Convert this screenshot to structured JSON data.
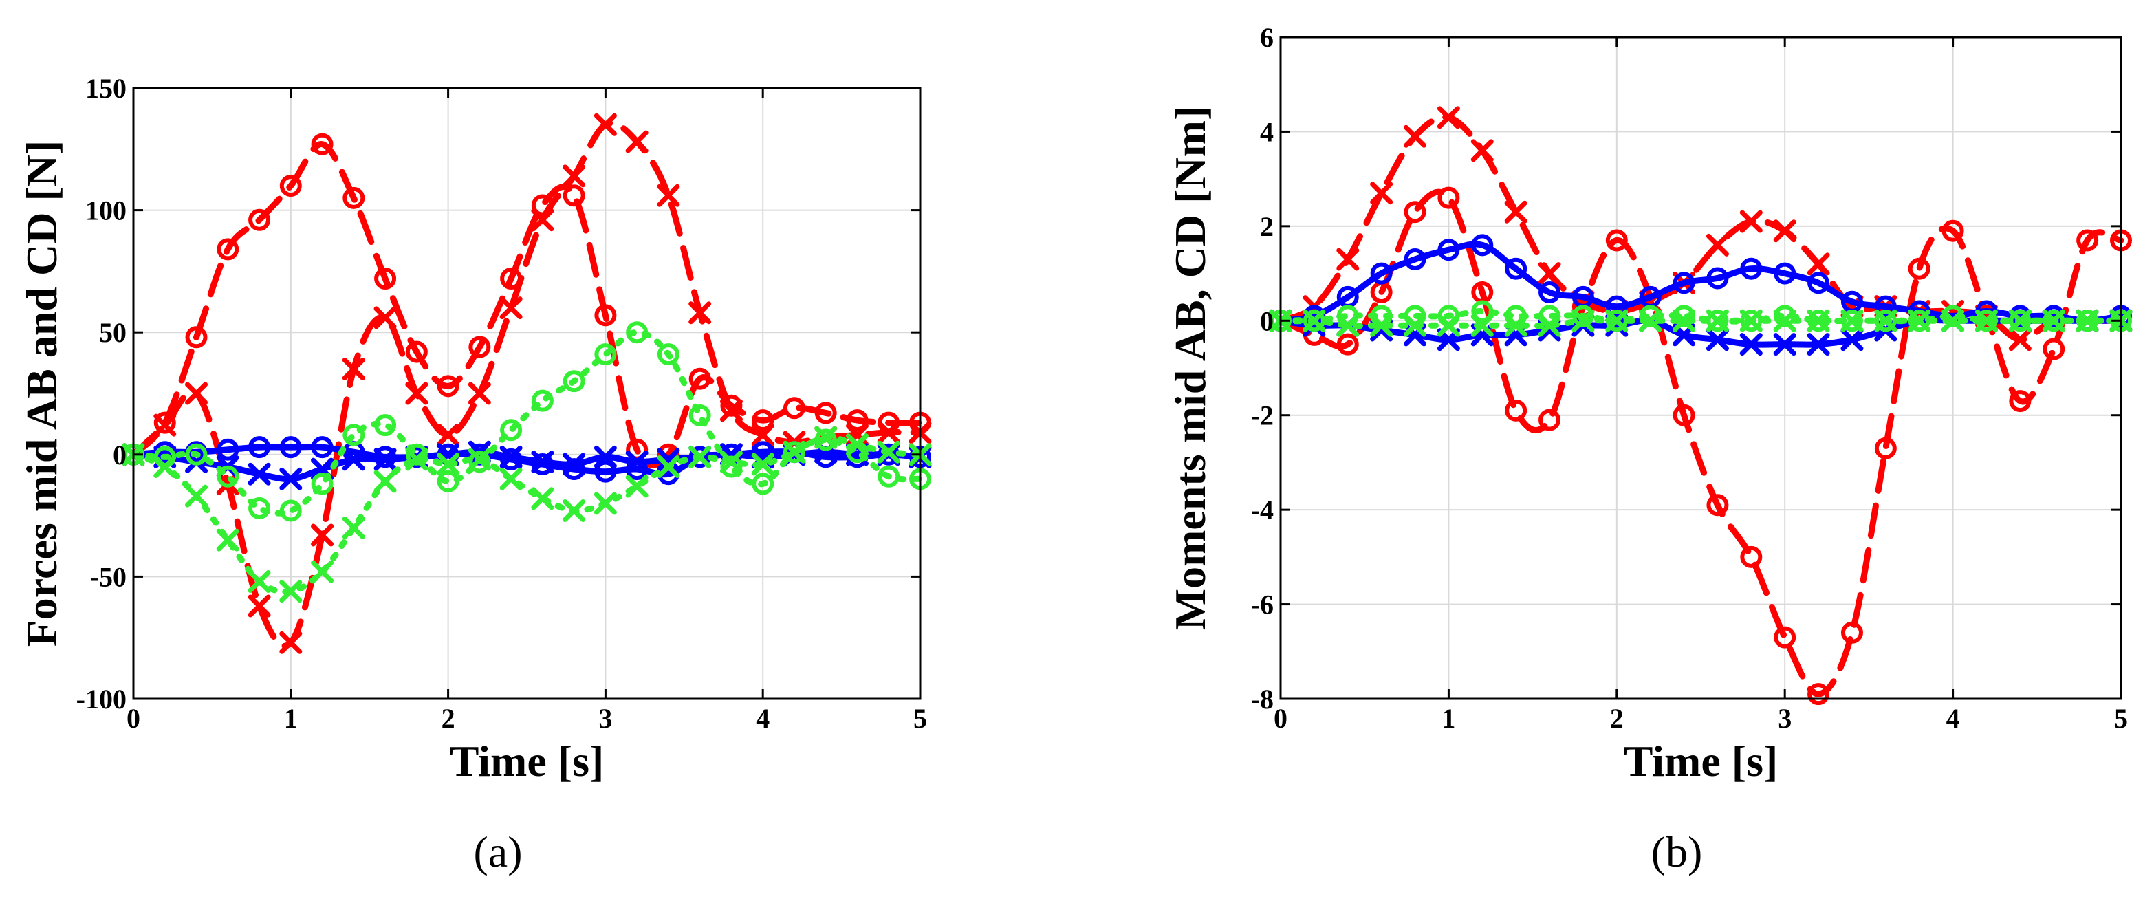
{
  "chart_data": [
    {
      "type": "line",
      "panel_label": "(a)",
      "xlabel": "Time [s]",
      "ylabel": "Forces mid AB and CD [N]",
      "xlim": [
        0,
        5
      ],
      "ylim": [
        -100,
        150
      ],
      "xticks": [
        "0",
        "1",
        "2",
        "3",
        "4",
        "5"
      ],
      "yticks": [
        "-100",
        "-50",
        "0",
        "50",
        "100",
        "150"
      ],
      "grid": true,
      "x": [
        0,
        0.2,
        0.4,
        0.6,
        0.8,
        1.0,
        1.2,
        1.4,
        1.6,
        1.8,
        2.0,
        2.2,
        2.4,
        2.6,
        2.8,
        3.0,
        3.2,
        3.4,
        3.6,
        3.8,
        4.0,
        4.2,
        4.4,
        4.6,
        4.8,
        5.0
      ],
      "series": [
        {
          "color": "#ff0000",
          "line": "dashed",
          "marker": "o",
          "values": [
            0,
            13,
            48,
            84,
            96,
            110,
            127,
            105,
            72,
            42,
            28,
            44,
            72,
            102,
            106,
            57,
            2,
            0,
            31,
            20,
            14,
            19,
            17,
            14,
            13,
            13
          ]
        },
        {
          "color": "#ff0000",
          "line": "dashed",
          "marker": "x",
          "values": [
            0,
            12,
            25,
            -12,
            -62,
            -77,
            -33,
            35,
            56,
            25,
            8,
            25,
            60,
            96,
            114,
            135,
            128,
            106,
            58,
            18,
            8,
            5,
            7,
            8,
            9,
            9
          ]
        },
        {
          "color": "#0000ff",
          "line": "solid",
          "marker": "o",
          "values": [
            0,
            1,
            1,
            2,
            3,
            3,
            3,
            1,
            -1,
            -1,
            0,
            0,
            -2,
            -4,
            -6,
            -7,
            -6,
            -8,
            -1,
            0,
            1,
            1,
            -1,
            -1,
            0,
            -1
          ]
        },
        {
          "color": "#0000ff",
          "line": "solid",
          "marker": "x",
          "values": [
            0,
            -1,
            -3,
            -5,
            -8,
            -10,
            -6,
            -2,
            -2,
            -1,
            0,
            1,
            -1,
            -3,
            -4,
            -1,
            -3,
            -2,
            -1,
            0,
            -1,
            0,
            1,
            0,
            0,
            -1
          ]
        },
        {
          "color": "#33ee33",
          "line": "dotted",
          "marker": "o",
          "values": [
            0,
            -1,
            0,
            -9,
            -22,
            -23,
            -12,
            8,
            12,
            0,
            -11,
            -3,
            10,
            22,
            30,
            41,
            50,
            41,
            16,
            -5,
            -12,
            1,
            6,
            1,
            -9,
            -10
          ]
        },
        {
          "color": "#33ee33",
          "line": "dotted",
          "marker": "x",
          "values": [
            0,
            -5,
            -17,
            -35,
            -52,
            -56,
            -48,
            -30,
            -11,
            -2,
            -4,
            -2,
            -10,
            -18,
            -23,
            -20,
            -13,
            -5,
            -1,
            -3,
            -4,
            1,
            7,
            4,
            1,
            0
          ]
        }
      ]
    },
    {
      "type": "line",
      "panel_label": "(b)",
      "xlabel": "Time [s]",
      "ylabel": "Moments mid AB, CD [Nm]",
      "xlim": [
        0,
        5
      ],
      "ylim": [
        -8,
        6
      ],
      "xticks": [
        "0",
        "1",
        "2",
        "3",
        "4",
        "5"
      ],
      "yticks": [
        "-8",
        "-6",
        "-4",
        "-2",
        "0",
        "2",
        "4",
        "6"
      ],
      "grid": true,
      "x": [
        0,
        0.2,
        0.4,
        0.6,
        0.8,
        1.0,
        1.2,
        1.4,
        1.6,
        1.8,
        2.0,
        2.2,
        2.4,
        2.6,
        2.8,
        3.0,
        3.2,
        3.4,
        3.6,
        3.8,
        4.0,
        4.2,
        4.4,
        4.6,
        4.8,
        5.0
      ],
      "series": [
        {
          "color": "#ff0000",
          "line": "dashed",
          "marker": "o",
          "values": [
            0,
            -0.3,
            -0.5,
            0.6,
            2.3,
            2.6,
            0.6,
            -1.9,
            -2.1,
            0.3,
            1.7,
            0.5,
            -2.0,
            -3.9,
            -5.0,
            -6.7,
            -7.9,
            -6.6,
            -2.7,
            1.1,
            1.9,
            0.1,
            -1.7,
            -0.6,
            1.7,
            1.7
          ]
        },
        {
          "color": "#ff0000",
          "line": "dashed",
          "marker": "x",
          "values": [
            0,
            0.3,
            1.3,
            2.7,
            3.9,
            4.3,
            3.6,
            2.3,
            1.0,
            0.4,
            0.2,
            0.4,
            0.8,
            1.6,
            2.1,
            1.9,
            1.2,
            0.3,
            0.3,
            0.2,
            0.2,
            0.1,
            -0.4,
            0.0,
            0.0,
            0.0
          ]
        },
        {
          "color": "#0000ff",
          "line": "solid",
          "marker": "o",
          "values": [
            0,
            0.1,
            0.5,
            1.0,
            1.3,
            1.5,
            1.6,
            1.1,
            0.6,
            0.5,
            0.3,
            0.5,
            0.8,
            0.9,
            1.1,
            1.0,
            0.8,
            0.4,
            0.3,
            0.2,
            0.1,
            0.2,
            0.1,
            0.1,
            0.0,
            0.1
          ]
        },
        {
          "color": "#0000ff",
          "line": "solid",
          "marker": "x",
          "values": [
            0,
            -0.1,
            -0.1,
            -0.2,
            -0.3,
            -0.4,
            -0.3,
            -0.3,
            -0.2,
            -0.1,
            -0.1,
            0.0,
            -0.3,
            -0.4,
            -0.5,
            -0.5,
            -0.5,
            -0.4,
            -0.2,
            0.0,
            0.0,
            0.0,
            0.0,
            0.0,
            0.0,
            0.0
          ]
        },
        {
          "color": "#33ee33",
          "line": "dotted",
          "marker": "o",
          "values": [
            0,
            0.0,
            0.1,
            0.1,
            0.1,
            0.1,
            0.2,
            0.1,
            0.1,
            0.1,
            0.0,
            0.1,
            0.1,
            0.0,
            0.0,
            0.1,
            0.0,
            0.0,
            0.0,
            0.0,
            0.1,
            0.0,
            0.0,
            0.0,
            0.0,
            0.0
          ]
        },
        {
          "color": "#33ee33",
          "line": "dotted",
          "marker": "x",
          "values": [
            0,
            0.0,
            -0.1,
            -0.1,
            -0.1,
            -0.1,
            -0.1,
            -0.1,
            -0.1,
            0.0,
            0.0,
            0.0,
            0.0,
            0.0,
            0.0,
            0.0,
            0.0,
            0.0,
            0.0,
            0.0,
            0.0,
            0.0,
            0.0,
            0.0,
            0.0,
            0.0
          ]
        }
      ]
    }
  ]
}
